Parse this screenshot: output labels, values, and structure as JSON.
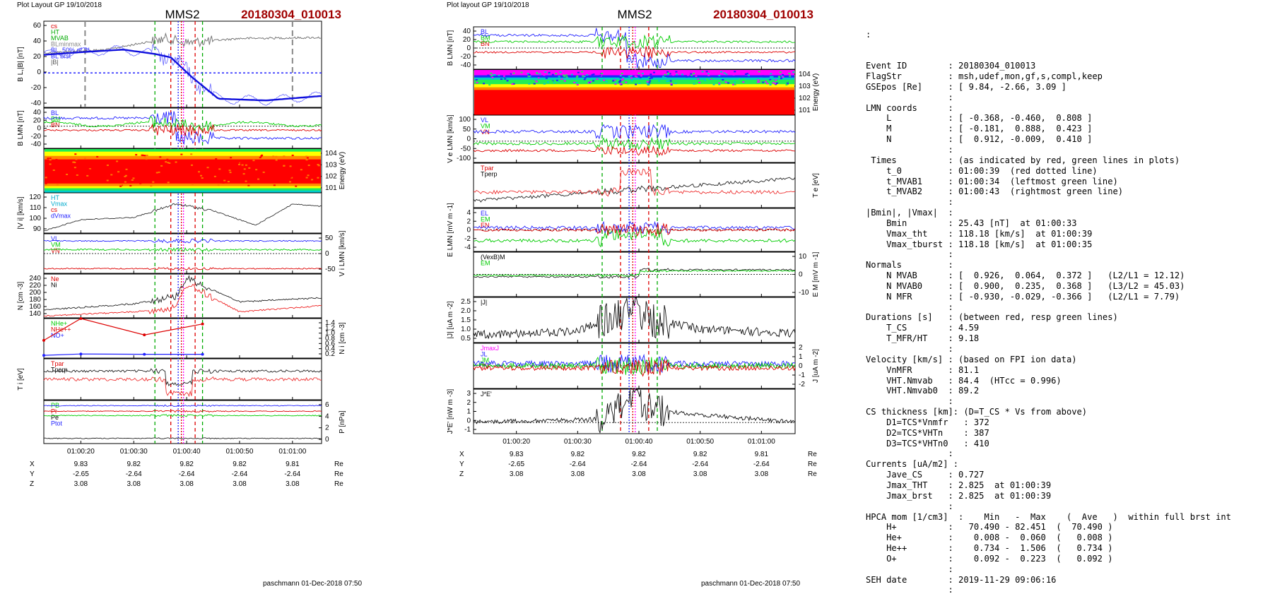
{
  "left_plot": {
    "header": "Plot Layout GP 19/10/2018",
    "spacecraft": "MMS2",
    "event": "20180304_010013",
    "footer": "paschmann 01-Dec-2018 07:50",
    "time_ticks": [
      "01:00:20",
      "01:00:30",
      "01:00:40",
      "01:00:50",
      "01:01:00"
    ],
    "pos_rows": [
      {
        "label": "X",
        "values": [
          "9.83",
          "9.82",
          "9.82",
          "9.82",
          "9.81"
        ],
        "unit": "Re"
      },
      {
        "label": "Y",
        "values": [
          "-2.65",
          "-2.64",
          "-2.64",
          "-2.64",
          "-2.64"
        ],
        "unit": "Re"
      },
      {
        "label": "Z",
        "values": [
          "3.08",
          "3.08",
          "3.08",
          "3.08",
          "3.08"
        ],
        "unit": "Re"
      }
    ],
    "panels": [
      {
        "ylabel": "B_L,|B| [nT]",
        "ticks": [
          "60",
          "40",
          "20",
          "0",
          "-20",
          "-40"
        ],
        "side": "left",
        "legend": [
          "cs",
          "HT",
          "MVAB",
          "BLminmax",
          "BL, 50% of BL",
          "BL brst",
          "|B|"
        ],
        "legend_colors": [
          "#dd0000",
          "#00aa00",
          "#00aa00",
          "#888888",
          "#2222ff",
          "#2222ff",
          "#555555"
        ]
      },
      {
        "ylabel": "B_LMN [nT]",
        "ticks": [
          "40",
          "20",
          "0",
          "-20",
          "-40"
        ],
        "side": "left",
        "legend": [
          "B_L",
          "B_M",
          "B_N"
        ],
        "legend_colors": [
          "#2222ff",
          "#00cc00",
          "#dd0000"
        ]
      },
      {
        "ylabel": "Energy (eV)",
        "ticks": [
          "10^4",
          "10^3",
          "10^2",
          "10^1"
        ],
        "side": "right",
        "legend": []
      },
      {
        "ylabel": "|V_i| [km/s]",
        "ticks": [
          "120",
          "110",
          "100",
          "90"
        ],
        "side": "left",
        "legend": [
          "HT",
          "Vmax",
          "cs",
          "dVmax"
        ],
        "legend_colors": [
          "#00aacc",
          "#00aacc",
          "#dd0000",
          "#2222ff"
        ]
      },
      {
        "ylabel": "V_i LMN [km/s]",
        "ticks": [
          "50",
          "0",
          "-50"
        ],
        "side": "right",
        "legend": [
          "V_L",
          "V_M",
          "V_N"
        ],
        "legend_colors": [
          "#2222ff",
          "#00cc00",
          "#dd0000"
        ]
      },
      {
        "ylabel": "N [cm^-3]",
        "ticks": [
          "240",
          "220",
          "200",
          "180",
          "160",
          "140"
        ],
        "side": "left",
        "legend": [
          "Ne",
          "Ni"
        ],
        "legend_colors": [
          "#dd0000",
          "#000000"
        ]
      },
      {
        "ylabel": "N_i [cm^-3]",
        "ticks": [
          "1.4",
          "1.2",
          "1.0",
          "0.8",
          "0.6",
          "0.4",
          "0.2"
        ],
        "side": "right",
        "legend": [
          "N_He+",
          "N_He++",
          "N_O+"
        ],
        "legend_colors": [
          "#00cc00",
          "#dd0000",
          "#2222ff"
        ]
      },
      {
        "ylabel": "T_i [eV]",
        "ticks": [],
        "side": "left",
        "legend": [
          "T_par",
          "T_perp"
        ],
        "legend_colors": [
          "#dd0000",
          "#000000"
        ]
      },
      {
        "ylabel": "P [nPa]",
        "ticks": [
          "6",
          "4",
          "2",
          "0"
        ],
        "side": "right",
        "legend": [
          "P_B",
          "P_i",
          "P_e",
          "P_tot"
        ],
        "legend_colors": [
          "#00cc00",
          "#dd0000",
          "#000000",
          "#2222ff"
        ]
      }
    ]
  },
  "right_plot": {
    "header": "Plot layout GP 19/10/2018",
    "spacecraft": "MMS2",
    "event": "20180304_010013",
    "footer": "paschmann 01-Dec-2018 07:50",
    "time_ticks": [
      "01:00:20",
      "01:00:30",
      "01:00:40",
      "01:00:50",
      "01:01:00"
    ],
    "pos_rows": [
      {
        "label": "X",
        "values": [
          "9.83",
          "9.82",
          "9.82",
          "9.82",
          "9.81"
        ],
        "unit": "Re"
      },
      {
        "label": "Y",
        "values": [
          "-2.65",
          "-2.64",
          "-2.64",
          "-2.64",
          "-2.64"
        ],
        "unit": "Re"
      },
      {
        "label": "Z",
        "values": [
          "3.08",
          "3.08",
          "3.08",
          "3.08",
          "3.08"
        ],
        "unit": "Re"
      }
    ],
    "panels": [
      {
        "ylabel": "B_LMN [nT]",
        "ticks": [
          "40",
          "20",
          "0",
          "-20",
          "-40"
        ],
        "side": "left",
        "legend": [
          "B_L",
          "B_M",
          "B_N"
        ],
        "legend_colors": [
          "#2222ff",
          "#00cc00",
          "#dd0000"
        ]
      },
      {
        "ylabel": "Energy (eV)",
        "ticks": [
          "10^4",
          "10^3",
          "10^2",
          "10^1"
        ],
        "side": "right",
        "legend": []
      },
      {
        "ylabel": "V_e LMN [km/s]",
        "ticks": [
          "100",
          "50",
          "0",
          "-50",
          "-100"
        ],
        "side": "left",
        "legend": [
          "V_L",
          "V_M",
          "V_N"
        ],
        "legend_colors": [
          "#2222ff",
          "#00cc00",
          "#dd0000"
        ]
      },
      {
        "ylabel": "T_e [eV]",
        "ticks": [],
        "side": "right",
        "legend": [
          "T_par",
          "T_perp"
        ],
        "legend_colors": [
          "#dd0000",
          "#000000"
        ]
      },
      {
        "ylabel": "E_LMN [mV m^-1]",
        "ticks": [
          "4",
          "2",
          "0",
          "-2",
          "-4"
        ],
        "side": "left",
        "legend": [
          "E_L",
          "E_M",
          "E_N"
        ],
        "legend_colors": [
          "#2222ff",
          "#00cc00",
          "#dd0000"
        ]
      },
      {
        "ylabel": "E_M [mV m^-1]",
        "ticks": [
          "10",
          "0",
          "-10"
        ],
        "side": "right",
        "legend": [
          "(VexB)_M",
          "E_M"
        ],
        "legend_colors": [
          "#000000",
          "#00cc00"
        ]
      },
      {
        "ylabel": "|J| [uA m^-2]",
        "ticks": [
          "2.5",
          "2.0",
          "1.5",
          "1.0",
          "0.5"
        ],
        "side": "left",
        "legend": [
          "|J|"
        ],
        "legend_colors": [
          "#000000"
        ]
      },
      {
        "ylabel": "J [uA m^-2]",
        "ticks": [
          "2",
          "1",
          "0",
          "-1",
          "-2"
        ],
        "side": "right",
        "legend": [
          "J_maxJ",
          "J_L",
          "J_M",
          "J_N"
        ],
        "legend_colors": [
          "#ff00ff",
          "#2222ff",
          "#00cc00",
          "#dd0000"
        ]
      },
      {
        "ylabel": "J*E' [nW m^-3]",
        "ticks": [
          "3",
          "2",
          "1",
          "0",
          "-1"
        ],
        "side": "left",
        "legend": [
          "J*E'"
        ],
        "legend_colors": [
          "#000000"
        ]
      }
    ]
  },
  "chart_data": [
    {
      "type": "line",
      "title": "MMS2",
      "subtitle": "20180304_010013",
      "x_ticks": [
        "01:00:20",
        "01:00:30",
        "01:00:40",
        "01:00:50",
        "01:01:00"
      ],
      "series": [
        {
          "name": "BL brst",
          "x": [
            "01:00:13",
            "01:00:20",
            "01:00:28",
            "01:00:34",
            "01:00:37",
            "01:00:41",
            "01:00:46",
            "01:00:55",
            "01:01:05"
          ],
          "y": [
            21,
            24,
            27,
            22,
            18,
            -5,
            -30,
            -32,
            -27
          ]
        },
        {
          "name": "|B|",
          "x": [
            "01:00:13",
            "01:00:25",
            "01:00:36",
            "01:00:40",
            "01:00:50",
            "01:01:05"
          ],
          "y": [
            23,
            27,
            40,
            35,
            40,
            41
          ]
        },
        {
          "name": "V_i",
          "x": [
            "01:00:13",
            "01:00:20",
            "01:00:30",
            "01:00:38",
            "01:00:45",
            "01:00:53",
            "01:01:00",
            "01:01:05"
          ],
          "y": [
            88,
            98,
            100,
            112,
            106,
            93,
            112,
            110
          ]
        },
        {
          "name": "Ni",
          "x": [
            "01:00:13",
            "01:00:30",
            "01:00:38",
            "01:00:40",
            "01:00:50",
            "01:01:05"
          ],
          "y": [
            155,
            170,
            190,
            235,
            175,
            185
          ]
        },
        {
          "name": "Ne",
          "x": [
            "01:00:13",
            "01:00:30",
            "01:00:38",
            "01:00:40",
            "01:00:50",
            "01:01:05"
          ],
          "y": [
            140,
            150,
            160,
            220,
            150,
            165
          ]
        },
        {
          "name": "N_He++",
          "x": [
            "01:00:13",
            "01:00:20",
            "01:00:32",
            "01:00:43"
          ],
          "y": [
            0.7,
            1.5,
            0.9,
            1.3
          ]
        },
        {
          "name": "N_O+",
          "x": [
            "01:00:13",
            "01:00:20",
            "01:00:32",
            "01:00:43"
          ],
          "y": [
            0.15,
            0.2,
            0.19,
            0.19
          ]
        }
      ]
    },
    {
      "type": "line",
      "title": "MMS2",
      "subtitle": "20180304_010013",
      "x_ticks": [
        "01:00:20",
        "01:00:30",
        "01:00:40",
        "01:00:50",
        "01:01:00"
      ],
      "series": [
        {
          "name": "|J|",
          "x": [
            "01:00:13",
            "01:00:30",
            "01:00:37",
            "01:00:39",
            "01:00:41",
            "01:00:50",
            "01:01:05"
          ],
          "y": [
            0.7,
            0.9,
            1.8,
            2.8,
            1.6,
            1.0,
            0.8
          ]
        },
        {
          "name": "J*E'",
          "x": [
            "01:00:13",
            "01:00:35",
            "01:00:39",
            "01:00:42",
            "01:01:05"
          ],
          "y": [
            0,
            0.3,
            3.0,
            1.2,
            0
          ]
        }
      ]
    }
  ],
  "info_lines": [
    "Event ID        : 20180304_010013",
    "FlagStr         : msh,udef,mon,gf,s,compl,keep",
    "GSEpos [Re]     : [ 9.84, -2.66, 3.09 ]",
    "                :",
    "LMN coords      :",
    "    L           : [ -0.368, -0.460,  0.808 ]",
    "    M           : [ -0.181,  0.888,  0.423 ]",
    "    N           : [  0.912, -0.009,  0.410 ]",
    "                :",
    " Times          : (as indicated by red, green lines in plots)",
    "    t_0         : 01:00:39  (red dotted line)",
    "    t_MVAB1     : 01:00:34  (leftmost green line)",
    "    t_MVAB2     : 01:00:43  (rightmost green line)",
    "                :",
    "|Bmin|, |Vmax|  :",
    "    Bmin        : 25.43 [nT]  at 01:00:33",
    "    Vmax_tht    : 118.18 [km/s]  at 01:00:39",
    "    Vmax_tburst : 118.18 [km/s]  at 01:00:35",
    "                :",
    "Normals         :",
    "    N MVAB      : [  0.926,  0.064,  0.372 ]   (L2/L1 = 12.12)",
    "    N MVAB0     : [  0.900,  0.235,  0.368 ]   (L3/L2 = 45.03)",
    "    N MFR       : [ -0.930, -0.029, -0.366 ]   (L2/L1 = 7.79)",
    "                :",
    "Durations [s]   : (between red, resp green lines)",
    "    T_CS        : 4.59",
    "    T_MFR/HT    : 9.18",
    "                :",
    "Velocity [km/s] : (based on FPI ion data)",
    "    VnMFR       : 81.1",
    "    VHT.Nmvab   : 84.4  (HTcc = 0.996)",
    "    VHT.Nmvab0  : 89.2",
    "                :",
    "CS thickness [km]: (D=T_CS * Vs from above)",
    "    D1=TCS*Vnmfr   : 372",
    "    D2=TCS*VHTn    : 387",
    "    D3=TCS*VHTn0   : 410",
    "                :",
    "Currents [uA/m2] :",
    "    Jave_CS     : 0.727",
    "    Jmax_THT    : 2.825  at 01:00:39",
    "    Jmax_brst   : 2.825  at 01:00:39",
    "                :",
    "HPCA mom [1/cm3]  :    Min   -  Max    (  Ave   )  within full brst int",
    "    H+          :   70.490 - 82.451  (  70.490 )",
    "    He+         :    0.008 -  0.060  (   0.008 )",
    "    He++        :    0.734 -  1.506  (   0.734 )",
    "    O+          :    0.092 -  0.223  (   0.092 )",
    "                :",
    "SEH date        : 2019-11-29 09:06:16",
    "                :"
  ],
  "info_leading_colon": ":"
}
